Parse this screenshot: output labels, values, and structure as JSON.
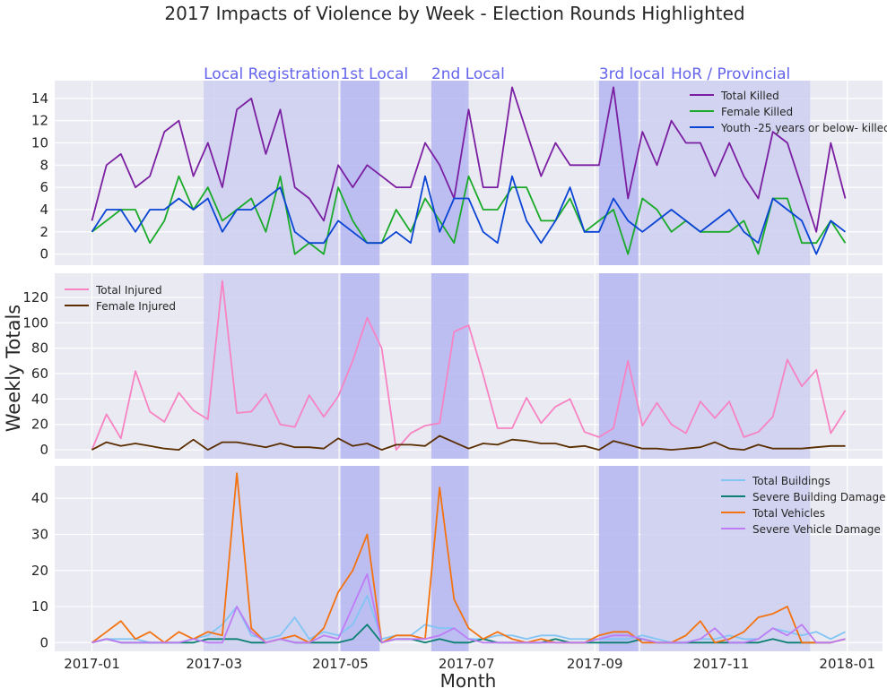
{
  "figure": {
    "title": "2017 Impacts of Violence by Week - Election Rounds Highlighted",
    "xlabel": "Month",
    "ylabel": "Weekly Totals"
  },
  "colors": {
    "background": "#eaeaf2",
    "grid": "#ffffff",
    "light_band": "#cccff0",
    "dark_band": "#b4b6f2",
    "band_label": "#6464ec"
  },
  "chart_data": {
    "type": "line",
    "x": [
      "2017-01-01",
      "2017-01-08",
      "2017-01-15",
      "2017-01-22",
      "2017-01-29",
      "2017-02-05",
      "2017-02-12",
      "2017-02-19",
      "2017-02-26",
      "2017-03-05",
      "2017-03-12",
      "2017-03-19",
      "2017-03-26",
      "2017-04-02",
      "2017-04-09",
      "2017-04-16",
      "2017-04-23",
      "2017-04-30",
      "2017-05-07",
      "2017-05-14",
      "2017-05-21",
      "2017-05-28",
      "2017-06-04",
      "2017-06-11",
      "2017-06-18",
      "2017-06-25",
      "2017-07-02",
      "2017-07-09",
      "2017-07-16",
      "2017-07-23",
      "2017-07-30",
      "2017-08-06",
      "2017-08-13",
      "2017-08-20",
      "2017-08-27",
      "2017-09-03",
      "2017-09-10",
      "2017-09-17",
      "2017-09-24",
      "2017-10-01",
      "2017-10-08",
      "2017-10-15",
      "2017-10-22",
      "2017-10-29",
      "2017-11-05",
      "2017-11-12",
      "2017-11-19",
      "2017-11-26",
      "2017-12-03",
      "2017-12-10",
      "2017-12-17",
      "2017-12-24",
      "2017-12-31"
    ],
    "x_ticks": [
      "2017-01",
      "2017-03",
      "2017-05",
      "2017-07",
      "2017-09",
      "2017-11",
      "2018-01"
    ],
    "x_tick_dates": [
      "2017-01-01",
      "2017-03-01",
      "2017-05-01",
      "2017-07-01",
      "2017-09-01",
      "2017-11-01",
      "2018-01-01"
    ],
    "xlim": [
      "2016-12-14",
      "2018-01-18"
    ],
    "bands": [
      {
        "label": "Local Registration",
        "start": "2017-02-24",
        "end": "2017-04-30",
        "shade": "light"
      },
      {
        "label": "1st Local",
        "start": "2017-05-01",
        "end": "2017-05-20",
        "shade": "dark"
      },
      {
        "label": "2nd Local",
        "start": "2017-06-14",
        "end": "2017-07-02",
        "shade": "dark"
      },
      {
        "label": "3rd local",
        "start": "2017-09-03",
        "end": "2017-09-22",
        "shade": "dark"
      },
      {
        "label": "HoR / Provincial",
        "start": "2017-09-23",
        "end": "2017-12-14",
        "shade": "light"
      }
    ],
    "panels": [
      {
        "ylim": [
          -1,
          15.6
        ],
        "yticks": [
          0,
          2,
          4,
          6,
          8,
          10,
          12,
          14
        ],
        "legend_position": "top-right",
        "series": [
          {
            "name": "Total Killed",
            "color": "#7b1fa2",
            "values": [
              3,
              8,
              9,
              6,
              7,
              11,
              12,
              7,
              10,
              6,
              13,
              14,
              9,
              13,
              6,
              5,
              3,
              8,
              6,
              8,
              7,
              6,
              6,
              10,
              8,
              5,
              13,
              6,
              6,
              15,
              11,
              7,
              10,
              8,
              8,
              8,
              15,
              5,
              11,
              8,
              12,
              10,
              10,
              7,
              10,
              7,
              5,
              11,
              10,
              6,
              2,
              10,
              5
            ]
          },
          {
            "name": "Female Killed",
            "color": "#1aaa2a",
            "values": [
              2,
              3,
              4,
              4,
              1,
              3,
              7,
              4,
              6,
              3,
              4,
              5,
              2,
              7,
              0,
              1,
              0,
              6,
              3,
              1,
              1,
              4,
              2,
              5,
              3,
              1,
              7,
              4,
              4,
              6,
              6,
              3,
              3,
              5,
              2,
              3,
              4,
              0,
              5,
              4,
              2,
              3,
              2,
              2,
              2,
              3,
              0,
              5,
              5,
              1,
              1,
              3,
              1
            ]
          },
          {
            "name": "Youth -25 years or below- killed",
            "color": "#0a44d4",
            "values": [
              2,
              4,
              4,
              2,
              4,
              4,
              5,
              4,
              5,
              2,
              4,
              4,
              5,
              6,
              2,
              1,
              1,
              3,
              2,
              1,
              1,
              2,
              1,
              7,
              2,
              5,
              5,
              2,
              1,
              7,
              3,
              1,
              3,
              6,
              2,
              2,
              5,
              3,
              2,
              3,
              4,
              3,
              2,
              3,
              4,
              2,
              1,
              5,
              4,
              3,
              0,
              3,
              2
            ]
          }
        ]
      },
      {
        "ylim": [
          -7,
          139
        ],
        "yticks": [
          0,
          20,
          40,
          60,
          80,
          100,
          120
        ],
        "legend_position": "top-left",
        "series": [
          {
            "name": "Total Injured",
            "color": "#f783c3",
            "values": [
              0,
              28,
              9,
              62,
              30,
              22,
              45,
              31,
              24,
              133,
              29,
              30,
              44,
              20,
              18,
              43,
              26,
              42,
              70,
              104,
              80,
              0,
              13,
              19,
              21,
              93,
              98,
              59,
              17,
              17,
              41,
              21,
              34,
              40,
              14,
              10,
              17,
              70,
              19,
              37,
              20,
              13,
              38,
              25,
              38,
              10,
              14,
              26,
              71,
              50,
              63,
              13,
              31
            ]
          },
          {
            "name": "Female Injured",
            "color": "#5a2e00",
            "values": [
              0,
              6,
              3,
              5,
              3,
              1,
              0,
              8,
              0,
              6,
              6,
              4,
              2,
              5,
              2,
              2,
              1,
              9,
              3,
              5,
              0,
              4,
              4,
              3,
              11,
              6,
              1,
              5,
              4,
              8,
              7,
              5,
              5,
              2,
              3,
              0,
              7,
              4,
              1,
              1,
              0,
              1,
              2,
              6,
              1,
              0,
              4,
              1,
              1,
              1,
              2,
              3,
              3
            ]
          }
        ]
      },
      {
        "ylim": [
          -2.4,
          49
        ],
        "yticks": [
          0,
          10,
          20,
          30,
          40
        ],
        "legend_position": "top-right",
        "series": [
          {
            "name": "Total Buildings",
            "color": "#82c5f5",
            "values": [
              0,
              1,
              1,
              1,
              0,
              0,
              0,
              1,
              2,
              5,
              10,
              2,
              1,
              2,
              7,
              1,
              3,
              2,
              5,
              13,
              1,
              2,
              2,
              5,
              4,
              4,
              1,
              1,
              2,
              2,
              1,
              2,
              2,
              1,
              1,
              1,
              1,
              1,
              2,
              1,
              0,
              0,
              1,
              1,
              2,
              1,
              1,
              4,
              3,
              2,
              3,
              1,
              3
            ]
          },
          {
            "name": "Severe Building Damage",
            "color": "#0b8072",
            "values": [
              0,
              1,
              0,
              0,
              0,
              0,
              0,
              0,
              1,
              1,
              1,
              0,
              0,
              1,
              0,
              0,
              0,
              0,
              1,
              5,
              0,
              1,
              1,
              0,
              1,
              0,
              0,
              1,
              0,
              0,
              0,
              0,
              1,
              0,
              0,
              0,
              0,
              0,
              1,
              0,
              0,
              0,
              0,
              0,
              0,
              0,
              0,
              1,
              0,
              0,
              0,
              0,
              1
            ]
          },
          {
            "name": "Total Vehicles",
            "color": "#f4720f",
            "values": [
              0,
              3,
              6,
              1,
              3,
              0,
              3,
              1,
              3,
              2,
              47,
              4,
              0,
              1,
              2,
              0,
              4,
              14,
              20,
              30,
              0,
              2,
              2,
              1,
              43,
              12,
              4,
              1,
              3,
              1,
              0,
              1,
              0,
              0,
              0,
              2,
              3,
              3,
              0,
              0,
              0,
              2,
              6,
              0,
              1,
              3,
              7,
              8,
              10,
              0,
              0,
              0,
              1
            ]
          },
          {
            "name": "Severe Vehicle Damage",
            "color": "#bf7cf5",
            "values": [
              0,
              1,
              0,
              0,
              0,
              0,
              0,
              1,
              0,
              0,
              10,
              3,
              0,
              1,
              0,
              0,
              2,
              1,
              10,
              19,
              0,
              1,
              1,
              1,
              2,
              4,
              1,
              0,
              0,
              0,
              0,
              0,
              0,
              0,
              0,
              1,
              2,
              2,
              1,
              0,
              0,
              0,
              1,
              4,
              0,
              0,
              1,
              4,
              2,
              5,
              0,
              0,
              1
            ]
          }
        ]
      }
    ]
  }
}
